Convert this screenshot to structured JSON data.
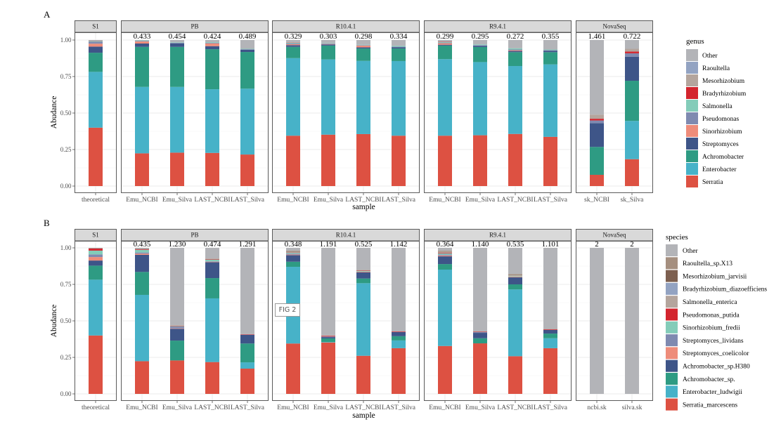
{
  "figure": {
    "panel_labels": [
      "A",
      "B"
    ],
    "annotation_label": "FIG 2"
  },
  "chart_data": [
    {
      "type": "bar",
      "stacked": true,
      "panel": "A",
      "title": "",
      "xlabel": "sample",
      "ylabel": "Abudance",
      "ylim": [
        0,
        1
      ],
      "yticks": {
        "values": [
          0,
          0.25,
          0.5,
          0.75,
          1
        ],
        "labels": [
          "0.00",
          "0.25",
          "0.50",
          "0.75",
          "1.00"
        ]
      },
      "grid": true,
      "legend": {
        "title": "genus",
        "position": "right"
      },
      "taxa": [
        {
          "name": "Serratia",
          "color": "#dd5142"
        },
        {
          "name": "Enterobacter",
          "color": "#47b2c8"
        },
        {
          "name": "Achromobacter",
          "color": "#2e9b83"
        },
        {
          "name": "Streptomyces",
          "color": "#3e5588"
        },
        {
          "name": "Sinorhizobium",
          "color": "#ee8c7a"
        },
        {
          "name": "Pseudomonas",
          "color": "#7f8ab0"
        },
        {
          "name": "Salmonella",
          "color": "#84ccb9"
        },
        {
          "name": "Bradyrhizobium",
          "color": "#d3252e"
        },
        {
          "name": "Mesorhizobium",
          "color": "#b4a59d"
        },
        {
          "name": "Raoultella",
          "color": "#93a3c2"
        },
        {
          "name": "Other",
          "color": "#b3b4b8"
        }
      ],
      "facets": [
        {
          "strip": "S1",
          "samples": [
            {
              "name": "theoretical",
              "top_label": "",
              "values": [
                0.4,
                0.382,
                0.131,
                0.042,
                0.02,
                0.014,
                0.005,
                0.002,
                0.002,
                0.002,
                0.0
              ]
            }
          ]
        },
        {
          "strip": "PB",
          "samples": [
            {
              "name": "Emu_NCBI",
              "top_label": "0.433",
              "values": [
                0.224,
                0.455,
                0.274,
                0.023,
                0.014,
                0.004,
                0.003,
                0.0,
                0.0,
                0.0,
                0.003
              ]
            },
            {
              "name": "Emu_Silva",
              "top_label": "0.454",
              "values": [
                0.229,
                0.45,
                0.274,
                0.024,
                0.0,
                0.004,
                0.003,
                0.0,
                0.0,
                0.0,
                0.016
              ]
            },
            {
              "name": "LAST_NCBI",
              "top_label": "0.424",
              "values": [
                0.227,
                0.436,
                0.274,
                0.021,
                0.019,
                0.004,
                0.004,
                0.0,
                0.0,
                0.0,
                0.015
              ]
            },
            {
              "name": "LAST_Silva",
              "top_label": "0.489",
              "values": [
                0.216,
                0.451,
                0.251,
                0.015,
                0.0,
                0.004,
                0.003,
                0.0,
                0.0,
                0.0,
                0.06
              ]
            }
          ]
        },
        {
          "strip": "R10.4.1",
          "samples": [
            {
              "name": "Emu_NCBI",
              "top_label": "0.329",
              "values": [
                0.345,
                0.531,
                0.077,
                0.012,
                0.006,
                0.006,
                0.005,
                0.002,
                0.002,
                0.001,
                0.013
              ]
            },
            {
              "name": "Emu_Silva",
              "top_label": "0.303",
              "values": [
                0.352,
                0.515,
                0.095,
                0.008,
                0.003,
                0.004,
                0.003,
                0.0,
                0.0,
                0.0,
                0.02
              ]
            },
            {
              "name": "LAST_NCBI",
              "top_label": "0.298",
              "values": [
                0.356,
                0.501,
                0.085,
                0.008,
                0.012,
                0.003,
                0.003,
                0.0,
                0.0,
                0.0,
                0.032
              ]
            },
            {
              "name": "LAST_Silva",
              "top_label": "0.334",
              "values": [
                0.345,
                0.511,
                0.086,
                0.009,
                0.0,
                0.003,
                0.006,
                0.0,
                0.0,
                0.0,
                0.04
              ]
            }
          ]
        },
        {
          "strip": "R9.4.1",
          "samples": [
            {
              "name": "Emu_NCBI",
              "top_label": "0.299",
              "values": [
                0.345,
                0.524,
                0.093,
                0.006,
                0.01,
                0.004,
                0.004,
                0.002,
                0.0,
                0.0,
                0.012
              ]
            },
            {
              "name": "Emu_Silva",
              "top_label": "0.295",
              "values": [
                0.348,
                0.501,
                0.103,
                0.007,
                0.0,
                0.006,
                0.005,
                0.0,
                0.0,
                0.0,
                0.03
              ]
            },
            {
              "name": "LAST_NCBI",
              "top_label": "0.272",
              "values": [
                0.357,
                0.465,
                0.095,
                0.008,
                0.005,
                0.005,
                0.008,
                0.0,
                0.0,
                0.0,
                0.057
              ]
            },
            {
              "name": "LAST_Silva",
              "top_label": "0.355",
              "values": [
                0.337,
                0.496,
                0.084,
                0.01,
                0.0,
                0.004,
                0.004,
                0.0,
                0.0,
                0.0,
                0.065
              ]
            }
          ]
        },
        {
          "strip": "NovaSeq",
          "samples": [
            {
              "name": "sk_NCBI",
              "top_label": "1.461",
              "values": [
                0.077,
                0.0,
                0.191,
                0.162,
                0.0,
                0.019,
                0.0,
                0.012,
                0.028,
                0.0,
                0.511
              ]
            },
            {
              "name": "sk_Silva",
              "top_label": "0.722",
              "values": [
                0.184,
                0.262,
                0.275,
                0.165,
                0.0,
                0.023,
                0.0,
                0.012,
                0.019,
                0.0,
                0.06
              ]
            }
          ]
        }
      ]
    },
    {
      "type": "bar",
      "stacked": true,
      "panel": "B",
      "title": "",
      "xlabel": "sample",
      "ylabel": "Abudance",
      "ylim": [
        0,
        1
      ],
      "yticks": {
        "values": [
          0,
          0.25,
          0.5,
          0.75,
          1
        ],
        "labels": [
          "0.00",
          "0.25",
          "0.50",
          "0.75",
          "1.00"
        ]
      },
      "grid": true,
      "legend": {
        "title": "species",
        "position": "right"
      },
      "taxa": [
        {
          "name": "Serratia_marcescens",
          "color": "#dd5142"
        },
        {
          "name": "Enterobacter_ludwigii",
          "color": "#47b2c8"
        },
        {
          "name": "Achromobacter_sp.",
          "color": "#2e9b83"
        },
        {
          "name": "Achromobacter_sp.H380",
          "color": "#3e5588"
        },
        {
          "name": "Streptomyces_coelicolor",
          "color": "#ee8c7a"
        },
        {
          "name": "Streptomyces_lividans",
          "color": "#7f8ab0"
        },
        {
          "name": "Sinorhizobium_fredii",
          "color": "#84ccb9"
        },
        {
          "name": "Pseudomonas_putida",
          "color": "#d3252e"
        },
        {
          "name": "Salmonella_enterica",
          "color": "#b4a59d"
        },
        {
          "name": "Bradyrhizobium_diazoefficiens",
          "color": "#93a3c2"
        },
        {
          "name": "Mesorhizobium_jarvisii",
          "color": "#7d6050"
        },
        {
          "name": "Raoultella_sp.X13",
          "color": "#a58f7f"
        },
        {
          "name": "Other",
          "color": "#b3b4b8"
        }
      ],
      "facets": [
        {
          "strip": "S1",
          "samples": [
            {
              "name": "theoretical",
              "top_label": "",
              "values": [
                0.4,
                0.382,
                0.096,
                0.035,
                0.024,
                0.018,
                0.026,
                0.014,
                0.002,
                0.001,
                0.001,
                0.001,
                0.0
              ]
            }
          ]
        },
        {
          "strip": "PB",
          "samples": [
            {
              "name": "Emu_NCBI",
              "top_label": "0.435",
              "values": [
                0.224,
                0.454,
                0.157,
                0.117,
                0.008,
                0.008,
                0.018,
                0.004,
                0.003,
                0.002,
                0.001,
                0.001,
                0.003
              ]
            },
            {
              "name": "Emu_Silva",
              "top_label": "1.230",
              "values": [
                0.229,
                0.0,
                0.136,
                0.081,
                0.003,
                0.012,
                0.003,
                0.003,
                0.003,
                0.0,
                0.0,
                0.0,
                0.53
              ]
            },
            {
              "name": "LAST_NCBI",
              "top_label": "0.474",
              "values": [
                0.218,
                0.436,
                0.139,
                0.109,
                0.003,
                0.003,
                0.012,
                0.003,
                0.004,
                0.0,
                0.0,
                0.0,
                0.073
              ]
            },
            {
              "name": "LAST_Silva",
              "top_label": "1.291",
              "values": [
                0.173,
                0.043,
                0.129,
                0.06,
                0.0,
                0.0,
                0.0,
                0.003,
                0.002,
                0.0,
                0.0,
                0.0,
                0.59
              ]
            }
          ]
        },
        {
          "strip": "R10.4.1",
          "samples": [
            {
              "name": "Emu_NCBI",
              "top_label": "0.348",
              "values": [
                0.345,
                0.525,
                0.035,
                0.045,
                0.004,
                0.006,
                0.006,
                0.002,
                0.006,
                0.0,
                0.002,
                0.004,
                0.02
              ]
            },
            {
              "name": "Emu_Silva",
              "top_label": "1.191",
              "values": [
                0.352,
                0.003,
                0.025,
                0.009,
                0.0,
                0.004,
                0.0,
                0.005,
                0.002,
                0.0,
                0.0,
                0.0,
                0.6
              ]
            },
            {
              "name": "LAST_NCBI",
              "top_label": "0.525",
              "values": [
                0.261,
                0.497,
                0.032,
                0.043,
                0.004,
                0.0,
                0.006,
                0.003,
                0.004,
                0.0,
                0.0,
                0.0,
                0.15
              ]
            },
            {
              "name": "LAST_Silva",
              "top_label": "1.142",
              "values": [
                0.313,
                0.053,
                0.029,
                0.028,
                0.0,
                0.0,
                0.0,
                0.004,
                0.0,
                0.0,
                0.0,
                0.0,
                0.573
              ]
            }
          ]
        },
        {
          "strip": "R9.4.1",
          "samples": [
            {
              "name": "Emu_NCBI",
              "top_label": "0.364",
              "values": [
                0.328,
                0.523,
                0.038,
                0.053,
                0.006,
                0.006,
                0.008,
                0.004,
                0.006,
                0.0,
                0.0,
                0.008,
                0.02
              ]
            },
            {
              "name": "Emu_Silva",
              "top_label": "1.140",
              "values": [
                0.346,
                0.0,
                0.035,
                0.037,
                0.0,
                0.005,
                0.0,
                0.003,
                0.002,
                0.0,
                0.0,
                0.0,
                0.572
              ]
            },
            {
              "name": "LAST_NCBI",
              "top_label": "0.535",
              "values": [
                0.258,
                0.457,
                0.035,
                0.048,
                0.004,
                0.0,
                0.004,
                0.0,
                0.006,
                0.0,
                0.0,
                0.008,
                0.18
              ]
            },
            {
              "name": "LAST_Silva",
              "top_label": "1.101",
              "values": [
                0.313,
                0.068,
                0.032,
                0.025,
                0.0,
                0.0,
                0.0,
                0.004,
                0.003,
                0.0,
                0.0,
                0.0,
                0.555
              ]
            }
          ]
        },
        {
          "strip": "NovaSeq",
          "samples": [
            {
              "name": "ncbi.sk",
              "top_label": "2",
              "values": [
                0,
                0,
                0,
                0,
                0,
                0,
                0,
                0,
                0,
                0,
                0,
                0,
                1.0
              ]
            },
            {
              "name": "silva.sk",
              "top_label": "2",
              "values": [
                0,
                0,
                0,
                0,
                0,
                0,
                0,
                0,
                0,
                0,
                0,
                0,
                1.0
              ]
            }
          ]
        }
      ]
    }
  ]
}
